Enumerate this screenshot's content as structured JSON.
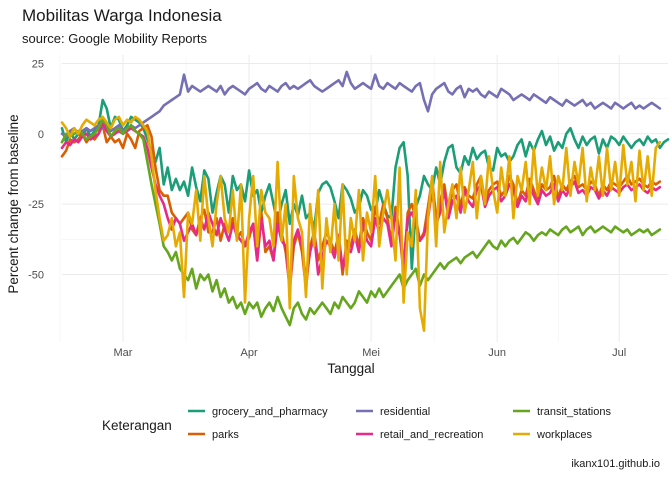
{
  "chart_data": {
    "type": "line",
    "title": "Mobilitas Warga Indonesia",
    "subtitle": "source: Google Mobility Reports",
    "caption": "ikanx101.github.io",
    "xlabel": "Tanggal",
    "ylabel": "Percent change from baseline",
    "legend_title": "Keterangan",
    "legend_position": "bottom",
    "grid": true,
    "xlim_day": [
      46,
      195
    ],
    "ylim": [
      -74,
      28
    ],
    "x_ticks": [
      {
        "label": "Mar",
        "day": 61
      },
      {
        "label": "Apr",
        "day": 92
      },
      {
        "label": "Mei",
        "day": 122
      },
      {
        "label": "Jun",
        "day": 153
      },
      {
        "label": "Jul",
        "day": 183
      }
    ],
    "y_ticks": [
      {
        "label": "25",
        "value": 25
      },
      {
        "label": "0",
        "value": 0
      },
      {
        "label": "-25",
        "value": -25
      },
      {
        "label": "-50",
        "value": -50
      }
    ],
    "x_start_day": 46,
    "series": [
      {
        "name": "grocery_and_pharmacy",
        "color": "#1B9E77",
        "values": [
          2,
          -3,
          1,
          -2,
          0,
          -1,
          2,
          -1,
          1,
          3,
          12,
          9,
          2,
          6,
          5,
          1,
          3,
          6,
          5,
          4,
          2,
          -2,
          -6,
          -10,
          -5,
          -18,
          -12,
          -20,
          -16,
          -20,
          -17,
          -22,
          -12,
          -19,
          -24,
          -13,
          -16,
          -28,
          -21,
          -15,
          -18,
          -28,
          -15,
          -20,
          -18,
          -24,
          -13,
          -22,
          -20,
          -28,
          -22,
          -18,
          -25,
          -32,
          -25,
          -20,
          -32,
          -25,
          -29,
          -22,
          -30,
          -28,
          -34,
          -21,
          -18,
          -17,
          -19,
          -24,
          -30,
          -18,
          -20,
          -23,
          -28,
          -26,
          -20,
          -22,
          -27,
          -28,
          -20,
          -25,
          -29,
          -30,
          -12,
          -5,
          -3,
          -15,
          -48,
          -26,
          -22,
          -15,
          -18,
          -20,
          -12,
          -18,
          -10,
          -5,
          -4,
          -12,
          -14,
          -8,
          -11,
          -5,
          -9,
          -7,
          -6,
          -12,
          -13,
          -5,
          -8,
          -7,
          -10,
          -8,
          -4,
          -2,
          -8,
          -3,
          -6,
          -2,
          1,
          -4,
          -1,
          -6,
          -3,
          -5,
          0,
          2,
          -2,
          -5,
          -1,
          -4,
          -2,
          -1,
          -7,
          -2,
          -5,
          -1,
          -2,
          -4,
          -1,
          -3,
          -5,
          -3,
          -2,
          -4,
          -1,
          -3,
          -2,
          -5,
          -3,
          -2
        ]
      },
      {
        "name": "parks",
        "color": "#D95F02",
        "values": [
          -8,
          -6,
          -2,
          -3,
          -2,
          0,
          -3,
          -1,
          -2,
          0,
          3,
          -3,
          -1,
          -3,
          -2,
          -5,
          0,
          -2,
          -5,
          1,
          2,
          3,
          -1,
          -12,
          -20,
          -22,
          -22,
          -28,
          -30,
          -32,
          -30,
          -28,
          -34,
          -36,
          -30,
          -27,
          -35,
          -35,
          -30,
          -38,
          -32,
          -35,
          -30,
          -37,
          -35,
          -40,
          -37,
          -32,
          -45,
          -28,
          -42,
          -40,
          -45,
          -28,
          -35,
          -42,
          -55,
          -40,
          -35,
          -42,
          -55,
          -40,
          -35,
          -45,
          -40,
          -35,
          -38,
          -42,
          -36,
          -50,
          -38,
          -40,
          -34,
          -40,
          -30,
          -35,
          -38,
          -26,
          -32,
          -25,
          -30,
          -38,
          -26,
          -35,
          -50,
          -28,
          -25,
          -30,
          -38,
          -35,
          -26,
          -16,
          -30,
          -24,
          -18,
          -28,
          -20,
          -18,
          -26,
          -19,
          -22,
          -23,
          -18,
          -15,
          -24,
          -20,
          -18,
          -17,
          -22,
          -20,
          -15,
          -18,
          -25,
          -20,
          -22,
          -16,
          -20,
          -24,
          -18,
          -20,
          -19,
          -15,
          -23,
          -18,
          -20,
          -17,
          -15,
          -19,
          -18,
          -20,
          -17,
          -18,
          -22,
          -18,
          -20,
          -17,
          -18,
          -19,
          -17,
          -15,
          -18,
          -17,
          -16,
          -18,
          -19,
          -17,
          -18,
          -17
        ]
      },
      {
        "name": "residential",
        "color": "#7570B3",
        "values": [
          0,
          -1,
          1,
          2,
          0,
          1,
          2,
          1,
          2,
          3,
          2,
          3,
          1,
          2,
          3,
          1,
          2,
          3,
          2,
          3,
          4,
          5,
          6,
          7,
          8,
          10,
          11,
          12,
          13,
          14,
          21,
          15,
          17,
          16,
          15,
          16,
          17,
          16,
          15,
          17,
          14,
          16,
          17,
          16,
          15,
          14,
          16,
          17,
          18,
          16,
          15,
          17,
          16,
          15,
          17,
          18,
          16,
          17,
          16,
          17,
          18,
          19,
          17,
          16,
          15,
          16,
          17,
          18,
          19,
          17,
          22,
          18,
          16,
          17,
          18,
          17,
          16,
          21,
          17,
          16,
          18,
          17,
          16,
          18,
          17,
          16,
          15,
          17,
          18,
          12,
          8,
          14,
          16,
          17,
          18,
          15,
          14,
          16,
          17,
          13,
          16,
          15,
          16,
          14,
          13,
          15,
          14,
          13,
          16,
          15,
          14,
          12,
          13,
          14,
          13,
          12,
          14,
          13,
          12,
          11,
          13,
          12,
          11,
          10,
          12,
          11,
          10,
          11,
          12,
          10,
          11,
          9,
          10,
          11,
          10,
          9,
          11,
          10,
          9,
          10,
          11,
          9,
          10,
          9,
          10,
          11,
          10,
          9
        ]
      },
      {
        "name": "retail_and_recreation",
        "color": "#E7298A",
        "values": [
          -5,
          -3,
          -4,
          -2,
          -3,
          -1,
          0,
          -2,
          -1,
          0,
          4,
          1,
          -1,
          0,
          1,
          0,
          1,
          2,
          1,
          0,
          -1,
          -5,
          -12,
          -18,
          -22,
          -25,
          -30,
          -34,
          -30,
          -32,
          -38,
          -35,
          -32,
          -36,
          -30,
          -34,
          -28,
          -32,
          -36,
          -30,
          -34,
          -38,
          -32,
          -36,
          -38,
          -40,
          -35,
          -32,
          -45,
          -30,
          -40,
          -38,
          -45,
          -32,
          -38,
          -40,
          -55,
          -38,
          -34,
          -40,
          -52,
          -42,
          -36,
          -50,
          -44,
          -38,
          -40,
          -44,
          -36,
          -48,
          -40,
          -42,
          -36,
          -42,
          -32,
          -38,
          -40,
          -30,
          -35,
          -30,
          -32,
          -40,
          -28,
          -36,
          -46,
          -30,
          -28,
          -32,
          -38,
          -36,
          -30,
          -20,
          -32,
          -28,
          -20,
          -30,
          -24,
          -22,
          -28,
          -20,
          -24,
          -26,
          -20,
          -18,
          -26,
          -22,
          -20,
          -19,
          -24,
          -22,
          -18,
          -20,
          -26,
          -22,
          -24,
          -18,
          -22,
          -25,
          -20,
          -22,
          -21,
          -18,
          -24,
          -20,
          -22,
          -19,
          -17,
          -21,
          -20,
          -22,
          -19,
          -20,
          -23,
          -20,
          -22,
          -19,
          -20,
          -21,
          -19,
          -18,
          -20,
          -19,
          -18,
          -20,
          -21,
          -19,
          -20,
          -19
        ]
      },
      {
        "name": "transit_stations",
        "color": "#66A61E",
        "values": [
          -3,
          0,
          -1,
          0,
          1,
          0,
          -2,
          -1,
          0,
          2,
          5,
          3,
          -1,
          1,
          2,
          0,
          2,
          3,
          1,
          0,
          -2,
          -10,
          -18,
          -25,
          -32,
          -40,
          -42,
          -45,
          -42,
          -48,
          -50,
          -52,
          -48,
          -55,
          -50,
          -52,
          -50,
          -56,
          -52,
          -58,
          -55,
          -60,
          -58,
          -62,
          -60,
          -64,
          -60,
          -62,
          -60,
          -65,
          -62,
          -60,
          -63,
          -58,
          -62,
          -65,
          -68,
          -62,
          -60,
          -64,
          -66,
          -62,
          -64,
          -62,
          -60,
          -62,
          -64,
          -60,
          -62,
          -58,
          -60,
          -62,
          -60,
          -56,
          -58,
          -60,
          -56,
          -58,
          -55,
          -58,
          -56,
          -54,
          -52,
          -50,
          -55,
          -52,
          -50,
          -48,
          -54,
          -50,
          -52,
          -50,
          -48,
          -46,
          -48,
          -46,
          -45,
          -44,
          -46,
          -44,
          -43,
          -42,
          -44,
          -42,
          -40,
          -38,
          -40,
          -41,
          -38,
          -40,
          -38,
          -37,
          -39,
          -37,
          -35,
          -36,
          -38,
          -36,
          -35,
          -36,
          -34,
          -35,
          -36,
          -34,
          -33,
          -35,
          -34,
          -33,
          -36,
          -34,
          -33,
          -35,
          -34,
          -33,
          -34,
          -35,
          -33,
          -34,
          -35,
          -34,
          -36,
          -35,
          -34,
          -35,
          -34,
          -36,
          -35,
          -34
        ]
      },
      {
        "name": "workplaces",
        "color": "#E6AB02",
        "values": [
          4,
          2,
          -1,
          2,
          0,
          3,
          5,
          4,
          3,
          5,
          6,
          4,
          2,
          5,
          6,
          3,
          5,
          4,
          6,
          5,
          3,
          1,
          -8,
          -20,
          -30,
          -38,
          -36,
          -30,
          -40,
          -35,
          -58,
          -28,
          -32,
          -20,
          -38,
          -15,
          -30,
          -40,
          -25,
          -15,
          -30,
          -35,
          -20,
          -38,
          -18,
          -60,
          -30,
          -15,
          -40,
          -20,
          -28,
          -30,
          -40,
          -10,
          -38,
          -25,
          -62,
          -15,
          -30,
          -35,
          -58,
          -25,
          -40,
          -20,
          -55,
          -30,
          -42,
          -25,
          -45,
          -18,
          -50,
          -30,
          -38,
          -20,
          -45,
          -28,
          -35,
          -15,
          -40,
          -28,
          -20,
          -30,
          -45,
          -12,
          -60,
          -35,
          -40,
          -20,
          -62,
          -70,
          -30,
          -15,
          -40,
          -10,
          -35,
          -25,
          -18,
          -30,
          -12,
          -28,
          -20,
          -10,
          -30,
          -15,
          -25,
          -8,
          -20,
          -28,
          -12,
          -22,
          -8,
          -30,
          -15,
          -20,
          -10,
          -25,
          -5,
          -22,
          -12,
          -20,
          -8,
          -25,
          -15,
          -20,
          -5,
          -22,
          -10,
          -18,
          -5,
          -24,
          -12,
          -20,
          -8,
          -22,
          -5,
          -20,
          -10,
          -22,
          -4,
          -18,
          -10,
          -24,
          -6,
          -20,
          -8,
          -22,
          -5,
          -3
        ]
      }
    ]
  }
}
